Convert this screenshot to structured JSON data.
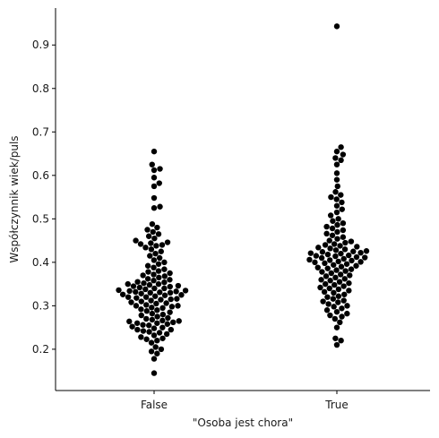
{
  "chart_data": {
    "type": "scatter",
    "style": "swarm",
    "xlabel": "\"Osoba jest chora\"",
    "ylabel": "Współczynnik wiek/puls",
    "categories": [
      "False",
      "True"
    ],
    "ylim": [
      0.105,
      0.985
    ],
    "yticks": [
      0.2,
      0.3,
      0.4,
      0.5,
      0.6,
      0.7,
      0.8,
      0.9
    ],
    "ytick_labels": [
      "0.2",
      "0.3",
      "0.4",
      "0.5",
      "0.6",
      "0.7",
      "0.8",
      "0.9"
    ],
    "grid": false,
    "legend": "none",
    "point_color": "#000000",
    "series": [
      {
        "category": "False",
        "values": [
          0.145,
          0.178,
          0.19,
          0.195,
          0.2,
          0.205,
          0.215,
          0.22,
          0.223,
          0.225,
          0.228,
          0.232,
          0.235,
          0.238,
          0.24,
          0.242,
          0.245,
          0.245,
          0.248,
          0.25,
          0.252,
          0.255,
          0.256,
          0.258,
          0.26,
          0.26,
          0.262,
          0.264,
          0.265,
          0.266,
          0.268,
          0.27,
          0.272,
          0.275,
          0.278,
          0.28,
          0.282,
          0.285,
          0.288,
          0.29,
          0.292,
          0.295,
          0.296,
          0.298,
          0.3,
          0.3,
          0.302,
          0.305,
          0.306,
          0.308,
          0.31,
          0.312,
          0.314,
          0.315,
          0.316,
          0.318,
          0.32,
          0.32,
          0.322,
          0.324,
          0.325,
          0.326,
          0.328,
          0.33,
          0.33,
          0.331,
          0.332,
          0.333,
          0.334,
          0.335,
          0.336,
          0.338,
          0.34,
          0.34,
          0.342,
          0.344,
          0.345,
          0.346,
          0.348,
          0.35,
          0.35,
          0.352,
          0.354,
          0.355,
          0.358,
          0.36,
          0.362,
          0.365,
          0.368,
          0.37,
          0.372,
          0.375,
          0.378,
          0.38,
          0.384,
          0.388,
          0.392,
          0.396,
          0.4,
          0.405,
          0.41,
          0.415,
          0.42,
          0.425,
          0.43,
          0.434,
          0.438,
          0.44,
          0.442,
          0.444,
          0.446,
          0.45,
          0.455,
          0.46,
          0.465,
          0.47,
          0.475,
          0.48,
          0.488,
          0.525,
          0.528,
          0.548,
          0.575,
          0.582,
          0.595,
          0.612,
          0.615,
          0.625,
          0.655
        ]
      },
      {
        "category": "True",
        "values": [
          0.21,
          0.22,
          0.225,
          0.25,
          0.262,
          0.27,
          0.275,
          0.278,
          0.282,
          0.286,
          0.29,
          0.294,
          0.298,
          0.3,
          0.304,
          0.308,
          0.31,
          0.312,
          0.316,
          0.32,
          0.322,
          0.326,
          0.33,
          0.332,
          0.335,
          0.338,
          0.34,
          0.342,
          0.345,
          0.348,
          0.35,
          0.352,
          0.355,
          0.358,
          0.36,
          0.362,
          0.365,
          0.368,
          0.37,
          0.372,
          0.375,
          0.378,
          0.38,
          0.382,
          0.384,
          0.386,
          0.388,
          0.39,
          0.392,
          0.394,
          0.396,
          0.398,
          0.4,
          0.401,
          0.402,
          0.404,
          0.405,
          0.406,
          0.408,
          0.41,
          0.411,
          0.412,
          0.414,
          0.415,
          0.416,
          0.418,
          0.42,
          0.421,
          0.422,
          0.424,
          0.425,
          0.426,
          0.428,
          0.43,
          0.432,
          0.434,
          0.436,
          0.438,
          0.44,
          0.442,
          0.445,
          0.448,
          0.45,
          0.454,
          0.458,
          0.462,
          0.466,
          0.47,
          0.474,
          0.478,
          0.482,
          0.486,
          0.49,
          0.495,
          0.5,
          0.508,
          0.515,
          0.522,
          0.53,
          0.538,
          0.545,
          0.55,
          0.555,
          0.562,
          0.575,
          0.59,
          0.605,
          0.625,
          0.635,
          0.64,
          0.648,
          0.655,
          0.665,
          0.943
        ]
      }
    ]
  }
}
